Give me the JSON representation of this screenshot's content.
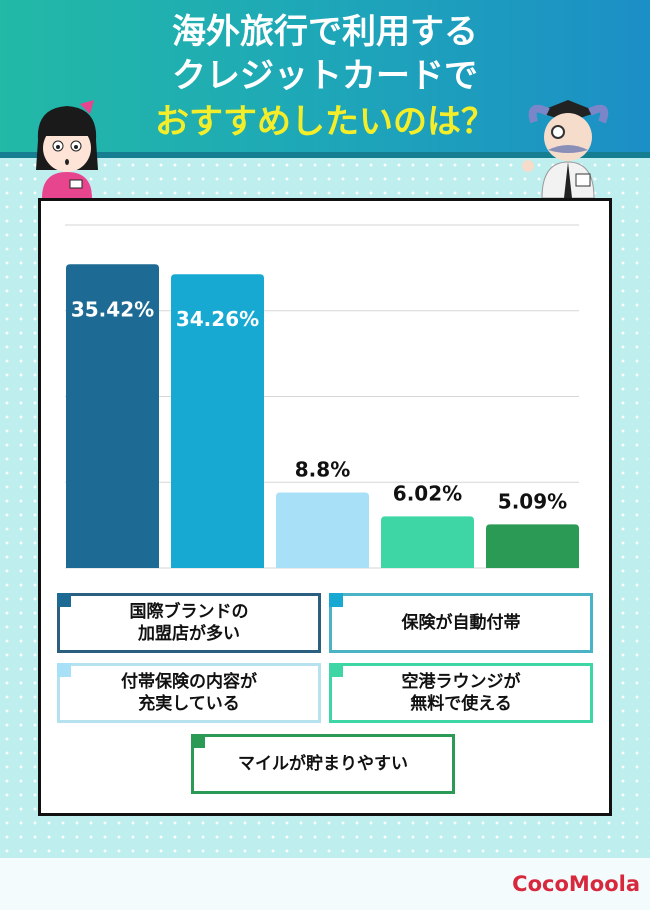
{
  "header": {
    "title_lines": [
      "海外旅行で利用する",
      "クレジットカードで",
      "おすすめしたいのは？"
    ]
  },
  "brand": {
    "logo": "CocoMoola"
  },
  "chart_data": {
    "type": "bar",
    "title": "",
    "categories": [
      "国際ブランドの\n加盟店が多い",
      "保険が自動付帯",
      "付帯保険の内容が\n充実している",
      "空港ラウンジが\n無料で使える",
      "マイルが貯まりやすい"
    ],
    "values": [
      35.42,
      34.26,
      8.8,
      6.02,
      5.09
    ],
    "data_labels": [
      "35.42%",
      "34.26%",
      "8.8%",
      "6.02%",
      "5.09%"
    ],
    "colors": [
      "#1d6a94",
      "#17a9d2",
      "#a8e0f7",
      "#3fd6a6",
      "#2b9a55"
    ],
    "ylim": [
      0,
      40
    ],
    "grid": true,
    "legend_position": "bottom"
  }
}
